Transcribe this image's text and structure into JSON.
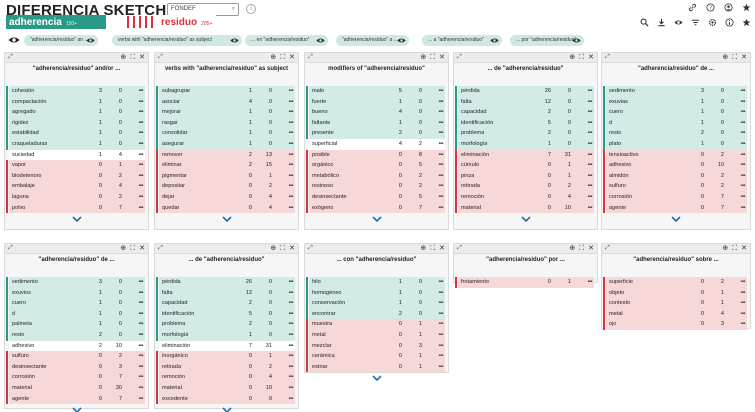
{
  "header": {
    "title": "DIFERENCIA SKETCH",
    "corpus": "FONDEF",
    "lemma1": {
      "label": "adherencia",
      "freq": "150+",
      "color": "#2a9a88"
    },
    "lemma2": {
      "label": "residuo",
      "freq": "205+",
      "color": "#d8323f"
    }
  },
  "top_icons": [
    "link-icon",
    "help-icon",
    "user-icon",
    "star-icon"
  ],
  "tool_icons": [
    "search-icon",
    "download-icon",
    "eye-icon",
    "filter-icon",
    "gear-icon",
    "info-icon",
    "star-icon"
  ],
  "chips": [
    "\"adherencia/residuo\" an ...",
    "verbs with \"adherencia/residuo\" as subject",
    "... en \"adherencia/residuo\"",
    "\"adherencia/residuo\" a ...",
    "... a \"adherencia/residuo\"",
    "... por \"adherencia/residuo\""
  ],
  "panels": [
    {
      "title": "\"adherencia/residuo\" and/or ...",
      "rows": [
        {
          "w": "cohesión",
          "a": "3",
          "b": "0",
          "s": "pos"
        },
        {
          "w": "compactación",
          "a": "1",
          "b": "0",
          "s": "pos"
        },
        {
          "w": "agregado",
          "a": "1",
          "b": "0",
          "s": "pos"
        },
        {
          "w": "rigidez",
          "a": "1",
          "b": "0",
          "s": "pos"
        },
        {
          "w": "estabilidad",
          "a": "1",
          "b": "0",
          "s": "pos"
        },
        {
          "w": "craqueladuras",
          "a": "1",
          "b": "0",
          "s": "pos"
        },
        {
          "w": "suciedad",
          "a": "1",
          "b": "4",
          "s": "neu"
        },
        {
          "w": "vapor",
          "a": "0",
          "b": "1",
          "s": "neg"
        },
        {
          "w": "biodeterioro",
          "a": "0",
          "b": "2",
          "s": "neg"
        },
        {
          "w": "embalaje",
          "a": "0",
          "b": "4",
          "s": "neg"
        },
        {
          "w": "laguna",
          "a": "0",
          "b": "2",
          "s": "neg"
        },
        {
          "w": "polvo",
          "a": "0",
          "b": "7",
          "s": "neg"
        }
      ]
    },
    {
      "title": "verbs with \"adherencia/residuo\" as subject",
      "rows": [
        {
          "w": "subagrupar",
          "a": "1",
          "b": "0",
          "s": "pos"
        },
        {
          "w": "asociar",
          "a": "4",
          "b": "0",
          "s": "pos"
        },
        {
          "w": "mejorar",
          "a": "1",
          "b": "0",
          "s": "pos"
        },
        {
          "w": "rasgar",
          "a": "1",
          "b": "0",
          "s": "pos"
        },
        {
          "w": "consolidar",
          "a": "1",
          "b": "0",
          "s": "pos"
        },
        {
          "w": "asegurar",
          "a": "1",
          "b": "0",
          "s": "pos"
        },
        {
          "w": "remover",
          "a": "2",
          "b": "13",
          "s": "neg"
        },
        {
          "w": "eliminar",
          "a": "2",
          "b": "15",
          "s": "neg"
        },
        {
          "w": "pigmentar",
          "a": "0",
          "b": "1",
          "s": "neg"
        },
        {
          "w": "depositar",
          "a": "0",
          "b": "2",
          "s": "neg"
        },
        {
          "w": "dejar",
          "a": "0",
          "b": "4",
          "s": "neg"
        },
        {
          "w": "quedar",
          "a": "0",
          "b": "4",
          "s": "neg"
        }
      ]
    },
    {
      "title": "modifiers of \"adherencia/residuo\"",
      "rows": [
        {
          "w": "malo",
          "a": "5",
          "b": "0",
          "s": "pos"
        },
        {
          "w": "fuerte",
          "a": "1",
          "b": "0",
          "s": "pos"
        },
        {
          "w": "bueno",
          "a": "4",
          "b": "0",
          "s": "pos"
        },
        {
          "w": "faltante",
          "a": "1",
          "b": "0",
          "s": "pos"
        },
        {
          "w": "presente",
          "a": "2",
          "b": "0",
          "s": "pos"
        },
        {
          "w": "superficial",
          "a": "4",
          "b": "2",
          "s": "neu"
        },
        {
          "w": "posible",
          "a": "0",
          "b": "8",
          "s": "neg"
        },
        {
          "w": "orgánico",
          "a": "0",
          "b": "5",
          "s": "neg"
        },
        {
          "w": "metabólico",
          "a": "0",
          "b": "2",
          "s": "neg"
        },
        {
          "w": "resinoso",
          "a": "0",
          "b": "2",
          "s": "neg"
        },
        {
          "w": "desinsectante",
          "a": "0",
          "b": "5",
          "s": "neg"
        },
        {
          "w": "exógeno",
          "a": "0",
          "b": "7",
          "s": "neg"
        }
      ]
    },
    {
      "title": "... de \"adherencia/residuo\"",
      "rows": [
        {
          "w": "pérdida",
          "a": "26",
          "b": "0",
          "s": "pos"
        },
        {
          "w": "falta",
          "a": "12",
          "b": "0",
          "s": "pos"
        },
        {
          "w": "capacidad",
          "a": "2",
          "b": "0",
          "s": "pos"
        },
        {
          "w": "identificación",
          "a": "5",
          "b": "0",
          "s": "pos"
        },
        {
          "w": "problema",
          "a": "2",
          "b": "0",
          "s": "pos"
        },
        {
          "w": "morfología",
          "a": "1",
          "b": "0",
          "s": "pos"
        },
        {
          "w": "eliminación",
          "a": "7",
          "b": "31",
          "s": "neg"
        },
        {
          "w": "cúmulo",
          "a": "0",
          "b": "1",
          "s": "neg"
        },
        {
          "w": "pinza",
          "a": "0",
          "b": "1",
          "s": "neg"
        },
        {
          "w": "retirada",
          "a": "0",
          "b": "2",
          "s": "neg"
        },
        {
          "w": "remoción",
          "a": "0",
          "b": "4",
          "s": "neg"
        },
        {
          "w": "material",
          "a": "0",
          "b": "10",
          "s": "neg"
        }
      ]
    },
    {
      "title": "\"adherencia/residuo\" de ...",
      "rows": [
        {
          "w": "sedimento",
          "a": "3",
          "b": "0",
          "s": "pos"
        },
        {
          "w": "exuvias",
          "a": "1",
          "b": "0",
          "s": "pos"
        },
        {
          "w": "cuero",
          "a": "1",
          "b": "0",
          "s": "pos"
        },
        {
          "w": "d",
          "a": "1",
          "b": "0",
          "s": "pos"
        },
        {
          "w": "resto",
          "a": "2",
          "b": "0",
          "s": "pos"
        },
        {
          "w": "plato",
          "a": "1",
          "b": "0",
          "s": "pos"
        },
        {
          "w": "tensioactivo",
          "a": "0",
          "b": "2",
          "s": "neg"
        },
        {
          "w": "adhesivo",
          "a": "0",
          "b": "10",
          "s": "neg"
        },
        {
          "w": "almidón",
          "a": "0",
          "b": "2",
          "s": "neg"
        },
        {
          "w": "sulfuro",
          "a": "0",
          "b": "2",
          "s": "neg"
        },
        {
          "w": "corrosión",
          "a": "0",
          "b": "7",
          "s": "neg"
        },
        {
          "w": "agente",
          "a": "0",
          "b": "7",
          "s": "neg"
        }
      ]
    },
    {
      "title": "\"adherencia/residuo\" de ...",
      "rows": [
        {
          "w": "sedimento",
          "a": "3",
          "b": "0",
          "s": "pos"
        },
        {
          "w": "exuvios",
          "a": "1",
          "b": "0",
          "s": "pos"
        },
        {
          "w": "cuero",
          "a": "1",
          "b": "0",
          "s": "pos"
        },
        {
          "w": "d",
          "a": "1",
          "b": "0",
          "s": "pos"
        },
        {
          "w": "palmeta",
          "a": "1",
          "b": "0",
          "s": "pos"
        },
        {
          "w": "resto",
          "a": "2",
          "b": "0",
          "s": "pos"
        },
        {
          "w": "adhesivo",
          "a": "2",
          "b": "10",
          "s": "neu"
        },
        {
          "w": "sulfuro",
          "a": "0",
          "b": "2",
          "s": "neg"
        },
        {
          "w": "desinsectante",
          "a": "0",
          "b": "3",
          "s": "neg"
        },
        {
          "w": "corrosión",
          "a": "0",
          "b": "7",
          "s": "neg"
        },
        {
          "w": "material",
          "a": "0",
          "b": "30",
          "s": "neg"
        },
        {
          "w": "agente",
          "a": "0",
          "b": "7",
          "s": "neg"
        }
      ]
    },
    {
      "title": "... de \"adherencia/residuo\"",
      "rows": [
        {
          "w": "pérdida",
          "a": "26",
          "b": "0",
          "s": "pos"
        },
        {
          "w": "falta",
          "a": "12",
          "b": "0",
          "s": "pos"
        },
        {
          "w": "capacidad",
          "a": "2",
          "b": "0",
          "s": "pos"
        },
        {
          "w": "identificación",
          "a": "5",
          "b": "0",
          "s": "pos"
        },
        {
          "w": "problema",
          "a": "2",
          "b": "0",
          "s": "pos"
        },
        {
          "w": "morfología",
          "a": "1",
          "b": "0",
          "s": "pos"
        },
        {
          "w": "eliminación",
          "a": "7",
          "b": "31",
          "s": "neu"
        },
        {
          "w": "inorgánico",
          "a": "0",
          "b": "1",
          "s": "neg"
        },
        {
          "w": "retirada",
          "a": "0",
          "b": "2",
          "s": "neg"
        },
        {
          "w": "remoción",
          "a": "0",
          "b": "4",
          "s": "neg"
        },
        {
          "w": "material",
          "a": "0",
          "b": "10",
          "s": "neg"
        },
        {
          "w": "excedente",
          "a": "0",
          "b": "9",
          "s": "neg"
        }
      ]
    },
    {
      "title": "... con \"adherencia/residuo\"",
      "rows": [
        {
          "w": "hilo",
          "a": "1",
          "b": "0",
          "s": "pos"
        },
        {
          "w": "homogéneo",
          "a": "1",
          "b": "0",
          "s": "pos"
        },
        {
          "w": "conservación",
          "a": "1",
          "b": "0",
          "s": "pos"
        },
        {
          "w": "encontrar",
          "a": "2",
          "b": "0",
          "s": "pos"
        },
        {
          "w": "muestra",
          "a": "0",
          "b": "1",
          "s": "neg"
        },
        {
          "w": "metal",
          "a": "0",
          "b": "1",
          "s": "neg"
        },
        {
          "w": "mezclar",
          "a": "0",
          "b": "3",
          "s": "neg"
        },
        {
          "w": "cerámica",
          "a": "0",
          "b": "1",
          "s": "neg"
        },
        {
          "w": "estriar",
          "a": "0",
          "b": "1",
          "s": "neg"
        }
      ]
    },
    {
      "title": "\"adherencia/residuo\" por ...",
      "rows": [
        {
          "w": "frotamiento",
          "a": "0",
          "b": "1",
          "s": "neg"
        }
      ]
    },
    {
      "title": "\"adherencia/residuo\" sobre ...",
      "rows": [
        {
          "w": "superficie",
          "a": "0",
          "b": "2",
          "s": "neg"
        },
        {
          "w": "objeto",
          "a": "0",
          "b": "1",
          "s": "neg"
        },
        {
          "w": "contexto",
          "a": "0",
          "b": "1",
          "s": "neg"
        },
        {
          "w": "metal",
          "a": "0",
          "b": "4",
          "s": "neg"
        },
        {
          "w": "ojo",
          "a": "0",
          "b": "3",
          "s": "neg"
        }
      ]
    }
  ],
  "row_menu": "•••",
  "colors": {
    "positive": "#2a9a88",
    "negative": "#d8323f"
  }
}
